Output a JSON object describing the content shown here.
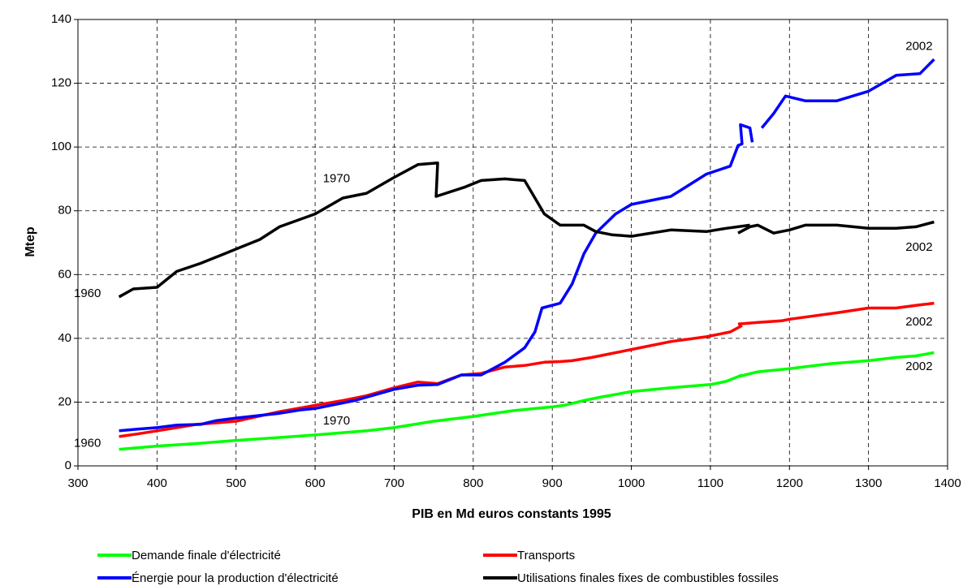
{
  "chart_data": {
    "type": "line",
    "xlabel": "PIB en Md euros constants 1995",
    "ylabel": "Mtep",
    "xlim": [
      300,
      1400
    ],
    "xticks": [
      300,
      400,
      500,
      600,
      700,
      800,
      900,
      1000,
      1100,
      1200,
      1300,
      1400
    ],
    "ylim": [
      0,
      140
    ],
    "yticks": [
      0,
      20,
      40,
      60,
      80,
      100,
      120,
      140
    ],
    "grid": true,
    "series": [
      {
        "name": "Demande finale d'électricité",
        "color": "#00ff00",
        "x": [
          352,
          400,
          450,
          500,
          550,
          600,
          665,
          700,
          750,
          800,
          850,
          900,
          915,
          940,
          960,
          1000,
          1050,
          1100,
          1120,
          1140,
          1143,
          1135,
          1160,
          1200,
          1250,
          1300,
          1335,
          1360,
          1383
        ],
        "values": [
          5.2,
          6.2,
          7,
          8,
          8.8,
          9.7,
          11,
          12,
          14,
          15.5,
          17.3,
          18.5,
          19,
          20.5,
          21.5,
          23.3,
          24.5,
          25.5,
          26.5,
          28.5,
          null,
          28,
          29.5,
          30.5,
          32,
          33,
          34,
          34.5,
          35.5
        ]
      },
      {
        "name": "Transports",
        "color": "#ff0000",
        "x": [
          352,
          375,
          400,
          425,
          450,
          500,
          555,
          600,
          635,
          665,
          700,
          730,
          755,
          785,
          810,
          840,
          865,
          890,
          910,
          925,
          950,
          970,
          1000,
          1050,
          1095,
          1125,
          1140,
          1143,
          1135,
          1160,
          1190,
          1200,
          1260,
          1300,
          1335,
          1365,
          1383
        ],
        "values": [
          9.2,
          10,
          11,
          12,
          13,
          14,
          17,
          19,
          20.5,
          22,
          24.5,
          26.3,
          25.8,
          28.5,
          29,
          31,
          31.5,
          32.5,
          32.7,
          33,
          34,
          35,
          36.5,
          39,
          40.5,
          42,
          44,
          null,
          44.5,
          45,
          45.5,
          46,
          48,
          49.5,
          49.5,
          50.5,
          51
        ]
      },
      {
        "name": "Énergie pour la production d'électricité",
        "color": "#0000ff",
        "x": [
          352,
          375,
          400,
          425,
          455,
          475,
          500,
          530,
          555,
          580,
          600,
          630,
          650,
          700,
          730,
          755,
          785,
          810,
          840,
          865,
          878,
          887,
          910,
          925,
          940,
          955,
          980,
          1000,
          1050,
          1095,
          1125,
          1135,
          1140,
          1138,
          1150,
          1153,
          1158,
          1165,
          1180,
          1195,
          1220,
          1260,
          1300,
          1335,
          1365,
          1383
        ],
        "values": [
          11,
          11.5,
          12,
          12.8,
          13,
          14.2,
          15,
          15.8,
          16.5,
          17.5,
          18,
          19.5,
          20.5,
          24,
          25.3,
          25.5,
          28.5,
          28.5,
          32.5,
          37,
          42,
          49.5,
          51,
          57,
          66.5,
          73,
          79,
          82,
          84.5,
          91.5,
          94,
          100.5,
          101,
          107,
          106,
          101.5,
          null,
          106,
          110.5,
          116,
          114.5,
          114.5,
          117.5,
          122.5,
          123,
          127.5
        ]
      },
      {
        "name": "Utilisations finales fixes de combustibles fossiles",
        "color": "#000000",
        "x": [
          352,
          370,
          400,
          425,
          455,
          480,
          505,
          530,
          555,
          600,
          635,
          665,
          700,
          730,
          755,
          753,
          790,
          810,
          840,
          865,
          890,
          910,
          940,
          955,
          975,
          1000,
          1050,
          1095,
          1120,
          1150,
          1143,
          1135,
          1150,
          1160,
          1180,
          1200,
          1220,
          1260,
          1300,
          1335,
          1360,
          1383
        ],
        "values": [
          53,
          55.5,
          56,
          61,
          63.5,
          66,
          68.5,
          71,
          75,
          79,
          84,
          85.5,
          90.5,
          94.5,
          95,
          84.5,
          87.5,
          89.5,
          90,
          89.5,
          79,
          75.5,
          75.5,
          73.5,
          72.5,
          72,
          74,
          73.5,
          74.5,
          75.5,
          null,
          73,
          75,
          75.5,
          73,
          74,
          75.5,
          75.5,
          74.5,
          74.5,
          75,
          76.5
        ]
      }
    ],
    "annotations": [
      {
        "text": "1960",
        "x": 312,
        "y": 54
      },
      {
        "text": "1960",
        "x": 312,
        "y": 7
      },
      {
        "text": "1970",
        "x": 627,
        "y": 90
      },
      {
        "text": "1970",
        "x": 627,
        "y": 14
      },
      {
        "text": "2002",
        "x": 1364,
        "y": 131.5
      },
      {
        "text": "2002",
        "x": 1364,
        "y": 68.5
      },
      {
        "text": "2002",
        "x": 1364,
        "y": 45
      },
      {
        "text": "2002",
        "x": 1364,
        "y": 31
      }
    ]
  }
}
